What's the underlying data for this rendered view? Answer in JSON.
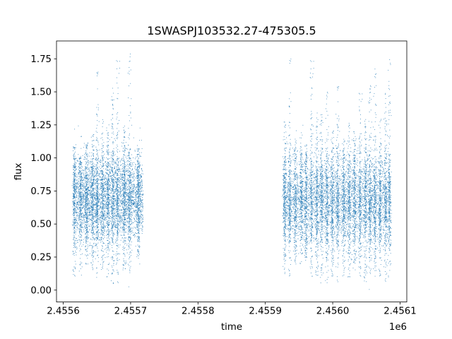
{
  "chart_data": {
    "type": "scatter",
    "title": "1SWASPJ103532.27-475305.5",
    "xlabel": "time",
    "ylabel": "flux",
    "x_offset_label": "1e6",
    "xlim": [
      2455590,
      2456110
    ],
    "ylim": [
      -0.09,
      1.885
    ],
    "x_ticks": [
      2455600,
      2455700,
      2455800,
      2455900,
      2456000,
      2456100
    ],
    "x_tick_labels": [
      "2.4556",
      "2.4557",
      "2.4558",
      "2.4559",
      "2.4560",
      "2.4561"
    ],
    "y_ticks": [
      0.0,
      0.25,
      0.5,
      0.75,
      1.0,
      1.25,
      1.5,
      1.75
    ],
    "y_tick_labels": [
      "0.00",
      "0.25",
      "0.50",
      "0.75",
      "1.00",
      "1.25",
      "1.50",
      "1.75"
    ],
    "grid": false,
    "marker_color": "#1f77b4",
    "series": [
      {
        "observing_season": 1,
        "time_range": [
          2455614,
          2455718
        ],
        "median_flux": 0.7,
        "flux_range": [
          0.02,
          1.8
        ],
        "bursts": [
          {
            "time": 2455616,
            "max_flux": 1.08,
            "min_flux": 0.1
          },
          {
            "time": 2455625,
            "max_flux": 1.0,
            "min_flux": 0.1
          },
          {
            "time": 2455634,
            "max_flux": 1.1,
            "min_flux": 0.2
          },
          {
            "time": 2455643,
            "max_flux": 1.22,
            "min_flux": 0.15
          },
          {
            "time": 2455650,
            "max_flux": 1.66,
            "min_flux": 0.12
          },
          {
            "time": 2455658,
            "max_flux": 1.3,
            "min_flux": 0.15
          },
          {
            "time": 2455666,
            "max_flux": 1.28,
            "min_flux": 0.1
          },
          {
            "time": 2455673,
            "max_flux": 1.55,
            "min_flux": 0.05
          },
          {
            "time": 2455680,
            "max_flux": 1.75,
            "min_flux": 0.05
          },
          {
            "time": 2455690,
            "max_flux": 1.25,
            "min_flux": 0.15
          },
          {
            "time": 2455698,
            "max_flux": 1.8,
            "min_flux": 0.02
          },
          {
            "time": 2455711,
            "max_flux": 1.07,
            "min_flux": 0.2
          }
        ]
      },
      {
        "observing_season": 2,
        "time_range": [
          2455926,
          2456085
        ],
        "median_flux": 0.68,
        "flux_range": [
          0.0,
          1.76
        ],
        "bursts": [
          {
            "time": 2455928,
            "max_flux": 1.3,
            "min_flux": 0.12
          },
          {
            "time": 2455936,
            "max_flux": 1.76,
            "min_flux": 0.1
          },
          {
            "time": 2455944,
            "max_flux": 1.15,
            "min_flux": 0.2
          },
          {
            "time": 2455953,
            "max_flux": 1.2,
            "min_flux": 0.2
          },
          {
            "time": 2455960,
            "max_flux": 1.1,
            "min_flux": 0.25
          },
          {
            "time": 2455968,
            "max_flux": 1.75,
            "min_flux": 0.1
          },
          {
            "time": 2455976,
            "max_flux": 1.35,
            "min_flux": 0.1
          },
          {
            "time": 2455983,
            "max_flux": 1.35,
            "min_flux": 0.05
          },
          {
            "time": 2455991,
            "max_flux": 1.5,
            "min_flux": 0.0
          },
          {
            "time": 2455999,
            "max_flux": 1.25,
            "min_flux": 0.1
          },
          {
            "time": 2456007,
            "max_flux": 1.55,
            "min_flux": 0.05
          },
          {
            "time": 2456016,
            "max_flux": 1.15,
            "min_flux": 0.1
          },
          {
            "time": 2456024,
            "max_flux": 1.35,
            "min_flux": 0.1
          },
          {
            "time": 2456032,
            "max_flux": 1.2,
            "min_flux": 0.15
          },
          {
            "time": 2456040,
            "max_flux": 1.5,
            "min_flux": 0.1
          },
          {
            "time": 2456048,
            "max_flux": 1.3,
            "min_flux": 0.05
          },
          {
            "time": 2456055,
            "max_flux": 1.55,
            "min_flux": 0.0
          },
          {
            "time": 2456062,
            "max_flux": 1.72,
            "min_flux": 0.1
          },
          {
            "time": 2456070,
            "max_flux": 1.3,
            "min_flux": 0.1
          },
          {
            "time": 2456078,
            "max_flux": 1.5,
            "min_flux": 0.05
          },
          {
            "time": 2456084,
            "max_flux": 1.76,
            "min_flux": 0.1
          }
        ]
      }
    ]
  }
}
